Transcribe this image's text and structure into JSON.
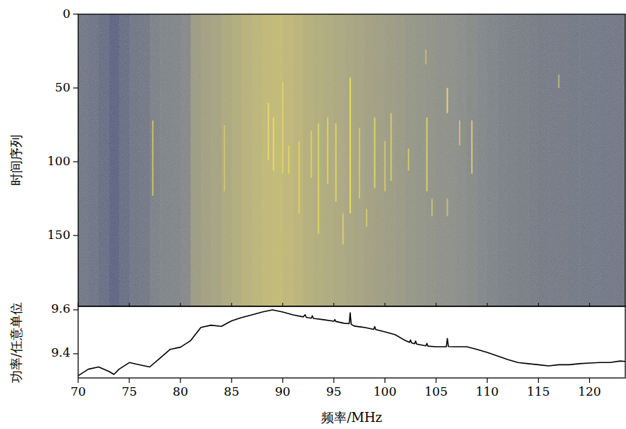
{
  "chart_data": [
    {
      "type": "heatmap",
      "ylabel": "时间序列",
      "xlim": [
        70,
        123.5
      ],
      "ylim": [
        0,
        198
      ],
      "xticks": [
        70,
        75,
        80,
        85,
        90,
        95,
        100,
        105,
        110,
        115,
        120
      ],
      "yticks": [
        0,
        50,
        100,
        150
      ],
      "tick_labels": "y",
      "bins": [
        70,
        71,
        72,
        73,
        74,
        75,
        76,
        77,
        78,
        79,
        80,
        81,
        82,
        83,
        84,
        85,
        86,
        87,
        88,
        89,
        90,
        91,
        92,
        93,
        94,
        95,
        96,
        97,
        98,
        99,
        100,
        101,
        102,
        103,
        104,
        105,
        106,
        107,
        108,
        109,
        110,
        111,
        112,
        113,
        114,
        115,
        116,
        117,
        118,
        119,
        120,
        121,
        122,
        123,
        123.5
      ],
      "intensity": [
        0.36,
        0.34,
        0.3,
        0.24,
        0.3,
        0.35,
        0.36,
        0.42,
        0.44,
        0.45,
        0.47,
        0.62,
        0.66,
        0.68,
        0.72,
        0.76,
        0.8,
        0.83,
        0.86,
        0.87,
        0.85,
        0.82,
        0.78,
        0.76,
        0.74,
        0.72,
        0.7,
        0.68,
        0.66,
        0.64,
        0.62,
        0.6,
        0.58,
        0.56,
        0.55,
        0.53,
        0.52,
        0.5,
        0.48,
        0.46,
        0.44,
        0.42,
        0.41,
        0.4,
        0.39,
        0.38,
        0.38,
        0.38,
        0.37,
        0.37,
        0.37,
        0.36,
        0.36,
        0.36
      ],
      "color_range": [
        0,
        1
      ],
      "streaks": [
        {
          "x": 77.3,
          "t": [
            72,
            123
          ],
          "strength": 0.5
        },
        {
          "x": 84.3,
          "t": [
            75,
            120
          ],
          "strength": 0.3
        },
        {
          "x": 88.6,
          "t": [
            60,
            99
          ],
          "strength": 0.7
        },
        {
          "x": 89.1,
          "t": [
            70,
            106
          ],
          "strength": 0.8
        },
        {
          "x": 90.0,
          "t": [
            46,
            108
          ],
          "strength": 0.5
        },
        {
          "x": 90.6,
          "t": [
            89,
            108
          ],
          "strength": 0.6
        },
        {
          "x": 91.6,
          "t": [
            86,
            135
          ],
          "strength": 0.5
        },
        {
          "x": 92.8,
          "t": [
            79,
            111
          ],
          "strength": 0.5
        },
        {
          "x": 93.5,
          "t": [
            74,
            149
          ],
          "strength": 0.6
        },
        {
          "x": 94.4,
          "t": [
            70,
            115
          ],
          "strength": 0.6
        },
        {
          "x": 95.2,
          "t": [
            74,
            127
          ],
          "strength": 0.7
        },
        {
          "x": 95.9,
          "t": [
            135,
            156
          ],
          "strength": 0.5
        },
        {
          "x": 96.6,
          "t": [
            43,
            135
          ],
          "strength": 0.9
        },
        {
          "x": 97.5,
          "t": [
            77,
            125
          ],
          "strength": 0.5
        },
        {
          "x": 98.2,
          "t": [
            132,
            144
          ],
          "strength": 0.5
        },
        {
          "x": 99.0,
          "t": [
            70,
            118
          ],
          "strength": 0.7
        },
        {
          "x": 100.0,
          "t": [
            86,
            120
          ],
          "strength": 0.5
        },
        {
          "x": 100.6,
          "t": [
            67,
            113
          ],
          "strength": 0.6
        },
        {
          "x": 102.3,
          "t": [
            91,
            106
          ],
          "strength": 0.5
        },
        {
          "x": 104.0,
          "t": [
            24,
            34
          ],
          "strength": 0.3
        },
        {
          "x": 104.1,
          "t": [
            70,
            120
          ],
          "strength": 0.7
        },
        {
          "x": 104.6,
          "t": [
            125,
            137
          ],
          "strength": 0.4
        },
        {
          "x": 106.1,
          "t": [
            50,
            67
          ],
          "strength": 0.9
        },
        {
          "x": 106.1,
          "t": [
            125,
            137
          ],
          "strength": 0.4
        },
        {
          "x": 107.3,
          "t": [
            72,
            89
          ],
          "strength": 0.5
        },
        {
          "x": 108.5,
          "t": [
            72,
            108
          ],
          "strength": 0.7
        },
        {
          "x": 117.0,
          "t": [
            41,
            50
          ],
          "strength": 0.4
        }
      ]
    },
    {
      "type": "line",
      "xlabel": "频率/MHz",
      "ylabel": "功率/任意单位",
      "xlim": [
        70,
        123.5
      ],
      "ylim": [
        9.29,
        9.616
      ],
      "xticks": [
        70,
        75,
        80,
        85,
        90,
        95,
        100,
        105,
        110,
        115,
        120
      ],
      "yticks": [
        9.4,
        9.6
      ],
      "x": [
        70,
        71,
        72,
        73,
        73.5,
        74,
        75,
        76,
        77,
        78,
        79,
        80,
        81,
        82,
        83,
        84,
        85,
        86,
        87,
        88,
        89,
        90,
        91,
        92,
        92.2,
        92.3,
        92.8,
        92.9,
        93,
        94,
        95,
        95.1,
        95.2,
        96,
        96.5,
        96.6,
        96.7,
        97,
        98,
        98.9,
        99,
        99.1,
        100,
        101,
        102,
        102.4,
        102.5,
        102.6,
        102.9,
        103,
        103.1,
        104,
        104.1,
        104.2,
        105,
        106,
        106.1,
        106.2,
        107,
        108,
        109,
        110,
        111,
        112,
        113,
        114,
        115,
        116,
        117,
        118,
        119,
        120,
        121,
        122,
        123,
        123.5
      ],
      "series": [
        {
          "color": "#000000",
          "values": [
            9.3,
            9.33,
            9.34,
            9.32,
            9.306,
            9.33,
            9.36,
            9.35,
            9.34,
            9.38,
            9.42,
            9.43,
            9.46,
            9.52,
            9.53,
            9.525,
            9.55,
            9.565,
            9.577,
            9.59,
            9.6,
            9.59,
            9.577,
            9.568,
            9.578,
            9.566,
            9.562,
            9.573,
            9.561,
            9.555,
            9.548,
            9.556,
            9.547,
            9.539,
            9.537,
            9.587,
            9.534,
            9.526,
            9.52,
            9.511,
            9.524,
            9.51,
            9.5,
            9.487,
            9.46,
            9.452,
            9.463,
            9.45,
            9.446,
            9.458,
            9.444,
            9.436,
            9.447,
            9.435,
            9.432,
            9.432,
            9.47,
            9.433,
            9.432,
            9.432,
            9.42,
            9.406,
            9.39,
            9.374,
            9.36,
            9.355,
            9.35,
            9.345,
            9.35,
            9.35,
            9.355,
            9.358,
            9.36,
            9.36,
            9.367,
            9.365
          ]
        }
      ]
    }
  ]
}
